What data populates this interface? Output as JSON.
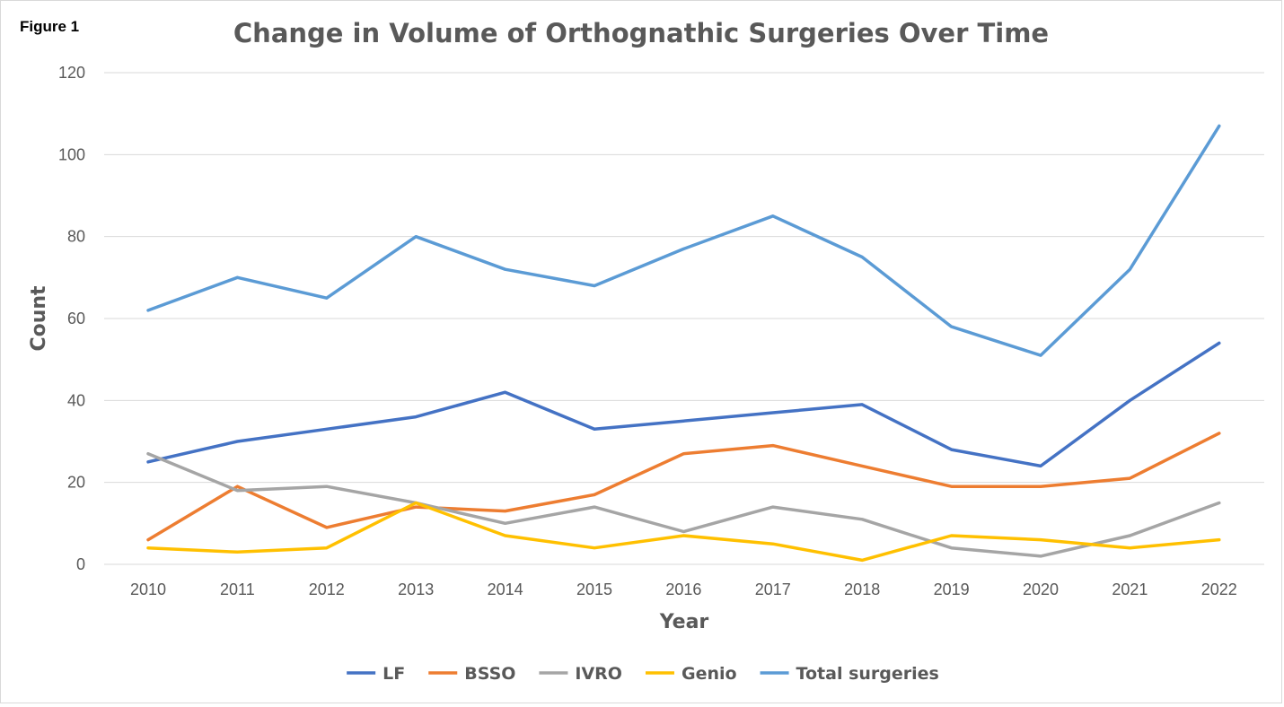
{
  "figure_label": "Figure 1",
  "chart_data": {
    "type": "line",
    "title": "Change in Volume of Orthognathic Surgeries Over Time",
    "xlabel": "Year",
    "ylabel": "Count",
    "ylim": [
      0,
      120
    ],
    "yticks": [
      0,
      20,
      40,
      60,
      80,
      100,
      120
    ],
    "grid": true,
    "legend_position": "bottom",
    "categories": [
      "2010",
      "2011",
      "2012",
      "2013",
      "2014",
      "2015",
      "2016",
      "2017",
      "2018",
      "2019",
      "2020",
      "2021",
      "2022"
    ],
    "series": [
      {
        "name": "LF",
        "color": "#4472c4",
        "values": [
          25,
          30,
          33,
          36,
          42,
          33,
          35,
          37,
          39,
          28,
          24,
          40,
          54
        ]
      },
      {
        "name": "BSSO",
        "color": "#ed7d31",
        "values": [
          6,
          19,
          9,
          14,
          13,
          17,
          27,
          29,
          24,
          19,
          19,
          21,
          32
        ]
      },
      {
        "name": "IVRO",
        "color": "#a5a5a5",
        "values": [
          27,
          18,
          19,
          15,
          10,
          14,
          8,
          14,
          11,
          4,
          2,
          7,
          15
        ]
      },
      {
        "name": "Genio",
        "color": "#ffc000",
        "values": [
          4,
          3,
          4,
          15,
          7,
          4,
          7,
          5,
          1,
          7,
          6,
          4,
          6
        ]
      },
      {
        "name": "Total surgeries",
        "color": "#5b9bd5",
        "values": [
          62,
          70,
          65,
          80,
          72,
          68,
          77,
          85,
          75,
          58,
          51,
          72,
          107
        ]
      }
    ]
  }
}
